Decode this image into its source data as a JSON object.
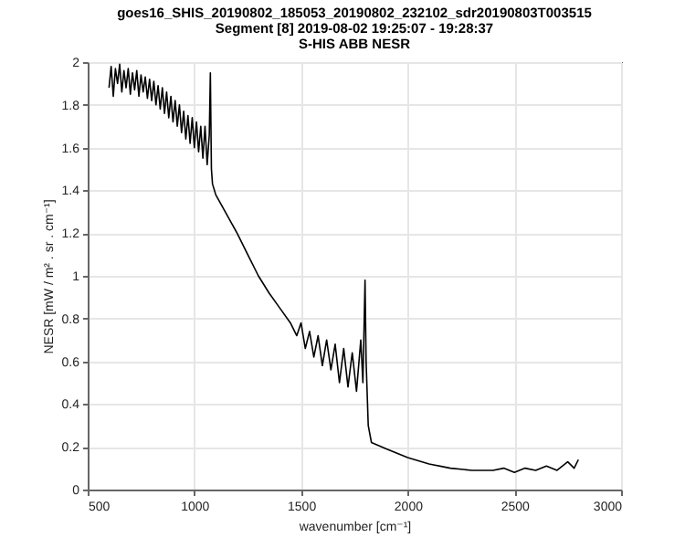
{
  "chart_data": {
    "type": "line",
    "title": "goes16_SHIS_20190802_185053_20190802_232102_sdr20190803T003515\nSegment [8] 2019-08-02 19:25:07 - 19:28:37\nS-HIS ABB NESR",
    "xlabel": "wavenumber [cm⁻¹]",
    "ylabel": "NESR [mW / m² . sr . cm⁻¹]",
    "xlim": [
      500,
      3000
    ],
    "xticks": [
      500,
      1000,
      1500,
      2000,
      2500,
      3000
    ],
    "ylim": [
      0,
      2
    ],
    "yticks": [
      0,
      0.2,
      0.4,
      0.6,
      0.8,
      1,
      1.2,
      1.4,
      1.6,
      1.8,
      2
    ],
    "grid": true,
    "series": [
      {
        "color": "#000000",
        "x": [
          600,
          610,
          620,
          630,
          640,
          650,
          660,
          670,
          680,
          690,
          700,
          710,
          720,
          730,
          740,
          750,
          760,
          770,
          780,
          790,
          800,
          810,
          820,
          830,
          840,
          850,
          860,
          870,
          880,
          890,
          900,
          910,
          920,
          930,
          940,
          950,
          960,
          970,
          980,
          990,
          1000,
          1010,
          1020,
          1030,
          1040,
          1050,
          1060,
          1070,
          1075,
          1080,
          1085,
          1100,
          1150,
          1200,
          1250,
          1300,
          1350,
          1400,
          1450,
          1480,
          1500,
          1520,
          1540,
          1560,
          1580,
          1600,
          1620,
          1640,
          1660,
          1680,
          1700,
          1720,
          1740,
          1760,
          1780,
          1790,
          1800,
          1805,
          1815,
          1830,
          1900,
          2000,
          2100,
          2200,
          2300,
          2400,
          2450,
          2500,
          2550,
          2600,
          2650,
          2700,
          2750,
          2780,
          2800
        ],
        "values": [
          1.88,
          1.98,
          1.84,
          1.97,
          1.9,
          1.99,
          1.86,
          1.96,
          1.88,
          1.97,
          1.85,
          1.95,
          1.87,
          1.96,
          1.84,
          1.94,
          1.86,
          1.93,
          1.83,
          1.92,
          1.82,
          1.91,
          1.8,
          1.89,
          1.78,
          1.88,
          1.76,
          1.86,
          1.74,
          1.84,
          1.72,
          1.82,
          1.7,
          1.8,
          1.67,
          1.77,
          1.64,
          1.75,
          1.62,
          1.74,
          1.6,
          1.72,
          1.58,
          1.7,
          1.55,
          1.7,
          1.52,
          1.66,
          1.95,
          1.5,
          1.43,
          1.38,
          1.29,
          1.2,
          1.1,
          1.0,
          0.92,
          0.85,
          0.78,
          0.72,
          0.78,
          0.66,
          0.74,
          0.62,
          0.72,
          0.58,
          0.7,
          0.56,
          0.68,
          0.5,
          0.66,
          0.48,
          0.64,
          0.46,
          0.7,
          0.5,
          0.98,
          0.6,
          0.3,
          0.22,
          0.19,
          0.15,
          0.12,
          0.1,
          0.09,
          0.09,
          0.1,
          0.08,
          0.1,
          0.09,
          0.11,
          0.09,
          0.13,
          0.1,
          0.14
        ]
      }
    ]
  }
}
